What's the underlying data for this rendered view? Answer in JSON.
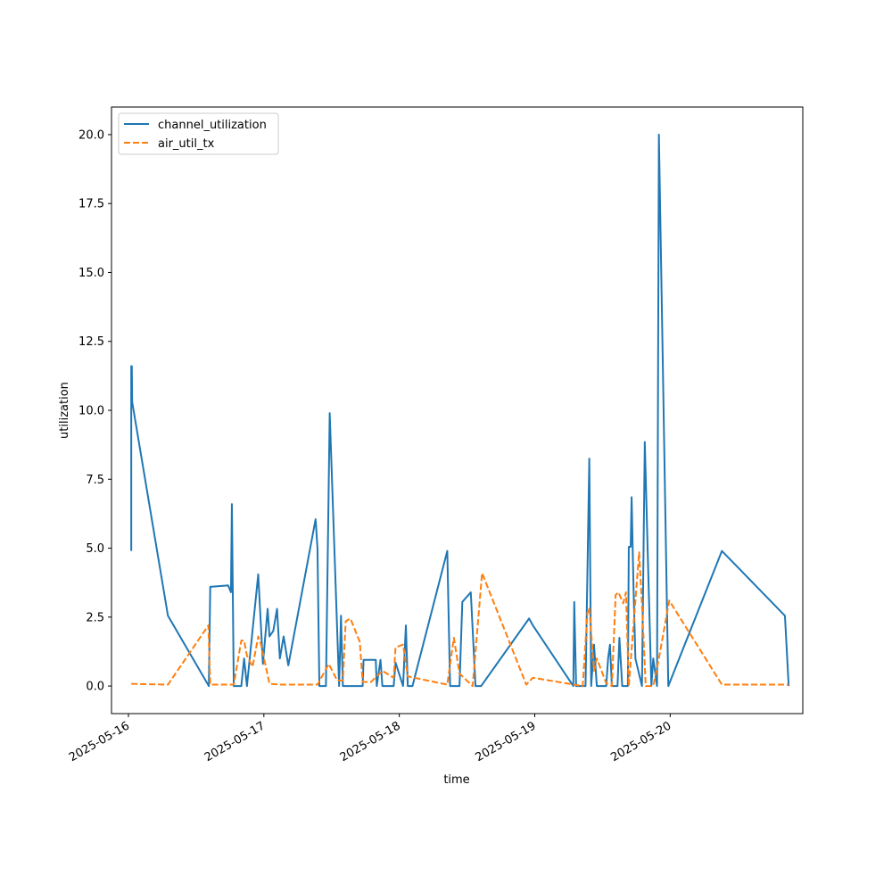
{
  "chart_data": {
    "type": "line",
    "title": "",
    "xlabel": "time",
    "ylabel": "utilization",
    "x_ticks": [
      "2025-05-16",
      "2025-05-17",
      "2025-05-18",
      "2025-05-19",
      "2025-05-20"
    ],
    "y_ticks": [
      "0.0",
      "2.5",
      "5.0",
      "7.5",
      "10.0",
      "12.5",
      "15.0",
      "17.5",
      "20.0"
    ],
    "xlim": [
      "2025-05-15 21:00",
      "2025-05-20 23:30"
    ],
    "ylim": [
      -1.0,
      21.0
    ],
    "grid": false,
    "legend_position": "upper-left",
    "series": [
      {
        "name": "channel_utilization",
        "color": "#1f77b4",
        "style": "solid",
        "points": [
          [
            "2025-05-16 00:30",
            4.9
          ],
          [
            "2025-05-16 00:30",
            11.6
          ],
          [
            "2025-05-16 00:36",
            11.6
          ],
          [
            "2025-05-16 00:40",
            10.3
          ],
          [
            "2025-05-16 07:00",
            2.55
          ],
          [
            "2025-05-16 14:15",
            0.0
          ],
          [
            "2025-05-16 14:30",
            3.6
          ],
          [
            "2025-05-16 17:40",
            3.65
          ],
          [
            "2025-05-16 18:10",
            3.4
          ],
          [
            "2025-05-16 18:20",
            6.6
          ],
          [
            "2025-05-16 18:40",
            0.0
          ],
          [
            "2025-05-16 20:00",
            0.0
          ],
          [
            "2025-05-16 20:30",
            1.0
          ],
          [
            "2025-05-16 21:00",
            0.0
          ],
          [
            "2025-05-16 23:00",
            4.05
          ],
          [
            "2025-05-16 23:50",
            0.8
          ],
          [
            "2025-05-17 00:40",
            2.8
          ],
          [
            "2025-05-17 01:00",
            1.8
          ],
          [
            "2025-05-17 01:40",
            2.0
          ],
          [
            "2025-05-17 02:20",
            2.8
          ],
          [
            "2025-05-17 02:50",
            1.0
          ],
          [
            "2025-05-17 03:30",
            1.8
          ],
          [
            "2025-05-17 04:20",
            0.75
          ],
          [
            "2025-05-17 09:10",
            6.05
          ],
          [
            "2025-05-17 09:30",
            5.0
          ],
          [
            "2025-05-17 09:50",
            0.0
          ],
          [
            "2025-05-17 11:00",
            0.0
          ],
          [
            "2025-05-17 11:40",
            9.9
          ],
          [
            "2025-05-17 13:20",
            0.0
          ],
          [
            "2025-05-17 13:40",
            2.55
          ],
          [
            "2025-05-17 14:00",
            0.0
          ],
          [
            "2025-05-17 17:30",
            0.0
          ],
          [
            "2025-05-17 17:40",
            0.95
          ],
          [
            "2025-05-17 19:50",
            0.95
          ],
          [
            "2025-05-17 20:00",
            0.0
          ],
          [
            "2025-05-17 20:40",
            0.95
          ],
          [
            "2025-05-17 21:00",
            0.0
          ],
          [
            "2025-05-17 23:00",
            0.0
          ],
          [
            "2025-05-17 23:20",
            0.85
          ],
          [
            "2025-05-18 00:40",
            0.0
          ],
          [
            "2025-05-18 01:10",
            2.2
          ],
          [
            "2025-05-18 01:30",
            0.0
          ],
          [
            "2025-05-18 02:20",
            0.0
          ],
          [
            "2025-05-18 08:30",
            4.9
          ],
          [
            "2025-05-18 09:00",
            0.0
          ],
          [
            "2025-05-18 10:40",
            0.0
          ],
          [
            "2025-05-18 11:10",
            3.05
          ],
          [
            "2025-05-18 12:40",
            3.4
          ],
          [
            "2025-05-18 13:30",
            0.0
          ],
          [
            "2025-05-18 14:30",
            0.0
          ],
          [
            "2025-05-18 23:00",
            2.45
          ],
          [
            "2025-05-18 23:40",
            2.2
          ],
          [
            "2025-05-19 06:50",
            0.0
          ],
          [
            "2025-05-19 07:00",
            3.05
          ],
          [
            "2025-05-19 07:20",
            0.0
          ],
          [
            "2025-05-19 09:00",
            0.0
          ],
          [
            "2025-05-19 09:40",
            8.25
          ],
          [
            "2025-05-19 10:00",
            0.0
          ],
          [
            "2025-05-19 10:30",
            1.5
          ],
          [
            "2025-05-19 11:00",
            0.0
          ],
          [
            "2025-05-19 12:40",
            0.0
          ],
          [
            "2025-05-19 13:00",
            1.0
          ],
          [
            "2025-05-19 13:20",
            1.5
          ],
          [
            "2025-05-19 13:40",
            0.0
          ],
          [
            "2025-05-19 14:40",
            0.0
          ],
          [
            "2025-05-19 15:00",
            1.75
          ],
          [
            "2025-05-19 15:30",
            0.0
          ],
          [
            "2025-05-19 16:30",
            0.0
          ],
          [
            "2025-05-19 16:40",
            5.05
          ],
          [
            "2025-05-19 17:00",
            5.05
          ],
          [
            "2025-05-19 17:10",
            6.85
          ],
          [
            "2025-05-19 17:30",
            3.6
          ],
          [
            "2025-05-19 17:50",
            1.0
          ],
          [
            "2025-05-19 19:00",
            0.0
          ],
          [
            "2025-05-19 19:30",
            8.85
          ],
          [
            "2025-05-19 20:00",
            5.0
          ],
          [
            "2025-05-19 20:40",
            0.0
          ],
          [
            "2025-05-19 21:00",
            1.0
          ],
          [
            "2025-05-19 21:40",
            0.0
          ],
          [
            "2025-05-19 22:00",
            20.0
          ],
          [
            "2025-05-19 23:40",
            0.0
          ],
          [
            "2025-05-20 09:10",
            4.9
          ],
          [
            "2025-05-20 20:20",
            2.55
          ],
          [
            "2025-05-20 21:00",
            0.0
          ]
        ]
      },
      {
        "name": "air_util_tx",
        "color": "#ff7f0e",
        "style": "dashed",
        "points": [
          [
            "2025-05-16 00:30",
            0.08
          ],
          [
            "2025-05-16 07:00",
            0.05
          ],
          [
            "2025-05-16 14:10",
            2.2
          ],
          [
            "2025-05-16 14:30",
            0.05
          ],
          [
            "2025-05-16 18:40",
            0.05
          ],
          [
            "2025-05-16 20:00",
            1.65
          ],
          [
            "2025-05-16 20:30",
            1.65
          ],
          [
            "2025-05-16 21:00",
            1.1
          ],
          [
            "2025-05-16 22:00",
            0.7
          ],
          [
            "2025-05-16 23:00",
            1.8
          ],
          [
            "2025-05-16 23:30",
            1.5
          ],
          [
            "2025-05-17 01:00",
            0.08
          ],
          [
            "2025-05-17 03:00",
            0.05
          ],
          [
            "2025-05-17 09:30",
            0.05
          ],
          [
            "2025-05-17 11:30",
            0.8
          ],
          [
            "2025-05-17 13:00",
            0.2
          ],
          [
            "2025-05-17 14:00",
            0.2
          ],
          [
            "2025-05-17 14:30",
            2.35
          ],
          [
            "2025-05-17 15:20",
            2.45
          ],
          [
            "2025-05-17 17:00",
            1.6
          ],
          [
            "2025-05-17 17:30",
            0.15
          ],
          [
            "2025-05-17 19:00",
            0.15
          ],
          [
            "2025-05-17 21:00",
            0.55
          ],
          [
            "2025-05-17 23:00",
            0.3
          ],
          [
            "2025-05-17 23:20",
            1.4
          ],
          [
            "2025-05-18 00:40",
            1.5
          ],
          [
            "2025-05-18 01:30",
            0.35
          ],
          [
            "2025-05-18 08:30",
            0.05
          ],
          [
            "2025-05-18 09:40",
            1.75
          ],
          [
            "2025-05-18 10:40",
            0.45
          ],
          [
            "2025-05-18 13:00",
            0.0
          ],
          [
            "2025-05-18 14:40",
            4.1
          ],
          [
            "2025-05-18 22:30",
            0.05
          ],
          [
            "2025-05-18 23:40",
            0.3
          ],
          [
            "2025-05-19 07:00",
            0.05
          ],
          [
            "2025-05-19 08:30",
            0.0
          ],
          [
            "2025-05-19 09:20",
            2.65
          ],
          [
            "2025-05-19 09:40",
            2.85
          ],
          [
            "2025-05-19 10:30",
            0.55
          ],
          [
            "2025-05-19 11:00",
            1.0
          ],
          [
            "2025-05-19 12:40",
            0.1
          ],
          [
            "2025-05-19 13:40",
            0.0
          ],
          [
            "2025-05-19 14:20",
            3.3
          ],
          [
            "2025-05-19 14:50",
            3.4
          ],
          [
            "2025-05-19 15:40",
            3.0
          ],
          [
            "2025-05-19 16:10",
            3.4
          ],
          [
            "2025-05-19 16:40",
            0.0
          ],
          [
            "2025-05-19 18:30",
            4.85
          ],
          [
            "2025-05-19 19:00",
            2.95
          ],
          [
            "2025-05-19 19:40",
            0.0
          ],
          [
            "2025-05-19 21:00",
            0.0
          ],
          [
            "2025-05-19 22:00",
            1.0
          ],
          [
            "2025-05-19 23:50",
            3.1
          ],
          [
            "2025-05-20 09:10",
            0.05
          ],
          [
            "2025-05-20 21:00",
            0.05
          ]
        ]
      }
    ]
  }
}
